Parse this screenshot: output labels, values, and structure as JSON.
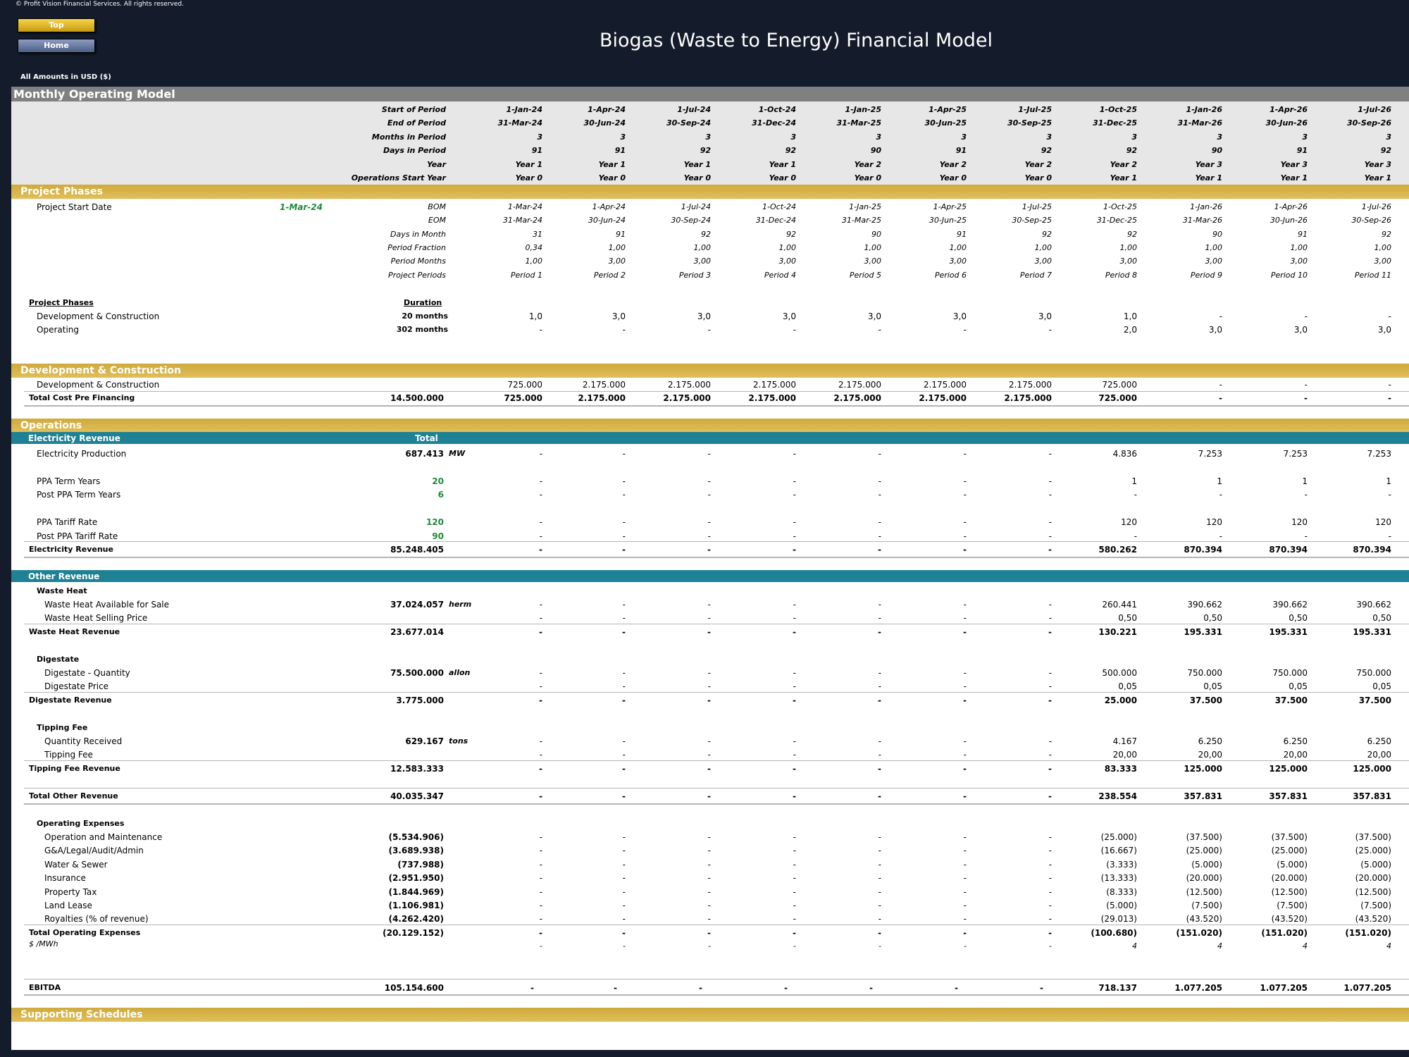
{
  "header": {
    "copyright": "© Profit Vision Financial Services. All rights reserved.",
    "top_button": "Top",
    "home_button": "Home",
    "title": "Biogas (Waste to Energy) Financial Model",
    "amounts": "All Amounts in  USD ($)"
  },
  "sheet_title": "Monthly Operating Model",
  "period_header": [
    {
      "label": "Start of Period",
      "values": [
        "1-Jan-24",
        "1-Apr-24",
        "1-Jul-24",
        "1-Oct-24",
        "1-Jan-25",
        "1-Apr-25",
        "1-Jul-25",
        "1-Oct-25",
        "1-Jan-26",
        "1-Apr-26",
        "1-Jul-26"
      ]
    },
    {
      "label": "End of Period",
      "values": [
        "31-Mar-24",
        "30-Jun-24",
        "30-Sep-24",
        "31-Dec-24",
        "31-Mar-25",
        "30-Jun-25",
        "30-Sep-25",
        "31-Dec-25",
        "31-Mar-26",
        "30-Jun-26",
        "30-Sep-26"
      ]
    },
    {
      "label": "Months in Period",
      "values": [
        "3",
        "3",
        "3",
        "3",
        "3",
        "3",
        "3",
        "3",
        "3",
        "3",
        "3"
      ]
    },
    {
      "label": "Days in Period",
      "values": [
        "91",
        "91",
        "92",
        "92",
        "90",
        "91",
        "92",
        "92",
        "90",
        "91",
        "92"
      ]
    },
    {
      "label": "Year",
      "values": [
        "Year 1",
        "Year 1",
        "Year 1",
        "Year 1",
        "Year 2",
        "Year 2",
        "Year 2",
        "Year 2",
        "Year 3",
        "Year 3",
        "Year 3"
      ]
    },
    {
      "label": "Operations Start Year",
      "values": [
        "Year 0",
        "Year 0",
        "Year 0",
        "Year 0",
        "Year 0",
        "Year 0",
        "Year 0",
        "Year 1",
        "Year 1",
        "Year 1",
        "Year 1"
      ]
    }
  ],
  "project_phases": {
    "section_label": "Project Phases",
    "start_date_label": "Project Start Date",
    "start_date_value": "1-Mar-24",
    "rows": [
      {
        "label": "BOM",
        "values": [
          "1-Mar-24",
          "1-Apr-24",
          "1-Jul-24",
          "1-Oct-24",
          "1-Jan-25",
          "1-Apr-25",
          "1-Jul-25",
          "1-Oct-25",
          "1-Jan-26",
          "1-Apr-26",
          "1-Jul-26"
        ]
      },
      {
        "label": "EOM",
        "values": [
          "31-Mar-24",
          "30-Jun-24",
          "30-Sep-24",
          "31-Dec-24",
          "31-Mar-25",
          "30-Jun-25",
          "30-Sep-25",
          "31-Dec-25",
          "31-Mar-26",
          "30-Jun-26",
          "30-Sep-26"
        ]
      },
      {
        "label": "Days in Month",
        "values": [
          "31",
          "91",
          "92",
          "92",
          "90",
          "91",
          "92",
          "92",
          "90",
          "91",
          "92"
        ]
      },
      {
        "label": "Period Fraction",
        "values": [
          "0,34",
          "1,00",
          "1,00",
          "1,00",
          "1,00",
          "1,00",
          "1,00",
          "1,00",
          "1,00",
          "1,00",
          "1,00"
        ]
      },
      {
        "label": "Period Months",
        "values": [
          "1,00",
          "3,00",
          "3,00",
          "3,00",
          "3,00",
          "3,00",
          "3,00",
          "3,00",
          "3,00",
          "3,00",
          "3,00"
        ]
      },
      {
        "label": "Project Periods",
        "values": [
          "Period 1",
          "Period 2",
          "Period 3",
          "Period 4",
          "Period 5",
          "Period 6",
          "Period 7",
          "Period 8",
          "Period 9",
          "Period 10",
          "Period 11"
        ]
      }
    ],
    "phases_heading": "Project Phases",
    "duration_heading": "Duration",
    "phases": [
      {
        "label": "Development & Construction",
        "duration": "20 months",
        "values": [
          "1,0",
          "3,0",
          "3,0",
          "3,0",
          "3,0",
          "3,0",
          "3,0",
          "1,0",
          "-",
          "-",
          "-"
        ]
      },
      {
        "label": "Operating",
        "duration": "302 months",
        "values": [
          "-",
          "-",
          "-",
          "-",
          "-",
          "-",
          "-",
          "2,0",
          "3,0",
          "3,0",
          "3,0"
        ]
      }
    ]
  },
  "dev_construction": {
    "section_label": "Development & Construction",
    "row": {
      "label": "Development & Construction",
      "values": [
        "725.000",
        "2.175.000",
        "2.175.000",
        "2.175.000",
        "2.175.000",
        "2.175.000",
        "2.175.000",
        "725.000",
        "-",
        "-",
        "-"
      ]
    },
    "total": {
      "label": "Total Cost Pre Financing",
      "total": "14.500.000",
      "values": [
        "725.000",
        "2.175.000",
        "2.175.000",
        "2.175.000",
        "2.175.000",
        "2.175.000",
        "2.175.000",
        "725.000",
        "-",
        "-",
        "-"
      ]
    }
  },
  "operations": {
    "section_label": "Operations",
    "electricity_label": "Electricity Revenue",
    "total_heading": "Total",
    "electricity_production": {
      "label": "Electricity Production",
      "total": "687.413",
      "unit": "MW",
      "values": [
        "-",
        "-",
        "-",
        "-",
        "-",
        "-",
        "-",
        "4.836",
        "7.253",
        "7.253",
        "7.253"
      ]
    },
    "ppa_term": {
      "label": "PPA Term Years",
      "total": "20",
      "values": [
        "-",
        "-",
        "-",
        "-",
        "-",
        "-",
        "-",
        "1",
        "1",
        "1",
        "1"
      ]
    },
    "post_ppa_term": {
      "label": "Post PPA Term Years",
      "total": "6",
      "values": [
        "-",
        "-",
        "-",
        "-",
        "-",
        "-",
        "-",
        "-",
        "-",
        "-",
        "-"
      ]
    },
    "ppa_tariff": {
      "label": "PPA Tariff Rate",
      "total": "120",
      "values": [
        "-",
        "-",
        "-",
        "-",
        "-",
        "-",
        "-",
        "120",
        "120",
        "120",
        "120"
      ]
    },
    "post_ppa_tariff": {
      "label": "Post PPA Tariff Rate",
      "total": "90",
      "values": [
        "-",
        "-",
        "-",
        "-",
        "-",
        "-",
        "-",
        "-",
        "-",
        "-",
        "-"
      ]
    },
    "electricity_revenue": {
      "label": "Electricity Revenue",
      "total": "85.248.405",
      "values": [
        "-",
        "-",
        "-",
        "-",
        "-",
        "-",
        "-",
        "580.262",
        "870.394",
        "870.394",
        "870.394"
      ]
    },
    "other_revenue_label": "Other Revenue",
    "waste_heat_heading": "Waste Heat",
    "waste_heat_available": {
      "label": "Waste Heat Available for Sale",
      "total": "37.024.057",
      "unit": "herm",
      "values": [
        "-",
        "-",
        "-",
        "-",
        "-",
        "-",
        "-",
        "260.441",
        "390.662",
        "390.662",
        "390.662"
      ]
    },
    "waste_heat_price": {
      "label": "Waste Heat Selling Price",
      "values": [
        "-",
        "-",
        "-",
        "-",
        "-",
        "-",
        "-",
        "0,50",
        "0,50",
        "0,50",
        "0,50"
      ]
    },
    "waste_heat_revenue": {
      "label": "Waste Heat Revenue",
      "total": "23.677.014",
      "values": [
        "-",
        "-",
        "-",
        "-",
        "-",
        "-",
        "-",
        "130.221",
        "195.331",
        "195.331",
        "195.331"
      ]
    },
    "digestate_heading": "Digestate",
    "digestate_quantity": {
      "label": "Digestate - Quantity",
      "total": "75.500.000",
      "unit": "allon",
      "values": [
        "-",
        "-",
        "-",
        "-",
        "-",
        "-",
        "-",
        "500.000",
        "750.000",
        "750.000",
        "750.000"
      ]
    },
    "digestate_price": {
      "label": "Digestate Price",
      "values": [
        "-",
        "-",
        "-",
        "-",
        "-",
        "-",
        "-",
        "0,05",
        "0,05",
        "0,05",
        "0,05"
      ]
    },
    "digestate_revenue": {
      "label": "Digestate Revenue",
      "total": "3.775.000",
      "values": [
        "-",
        "-",
        "-",
        "-",
        "-",
        "-",
        "-",
        "25.000",
        "37.500",
        "37.500",
        "37.500"
      ]
    },
    "tipping_heading": "Tipping Fee",
    "quantity_received": {
      "label": "Quantity Received",
      "total": "629.167",
      "unit": "tons",
      "values": [
        "-",
        "-",
        "-",
        "-",
        "-",
        "-",
        "-",
        "4.167",
        "6.250",
        "6.250",
        "6.250"
      ]
    },
    "tipping_fee": {
      "label": "Tipping Fee",
      "values": [
        "-",
        "-",
        "-",
        "-",
        "-",
        "-",
        "-",
        "20,00",
        "20,00",
        "20,00",
        "20,00"
      ]
    },
    "tipping_revenue": {
      "label": "Tipping Fee Revenue",
      "total": "12.583.333",
      "values": [
        "-",
        "-",
        "-",
        "-",
        "-",
        "-",
        "-",
        "83.333",
        "125.000",
        "125.000",
        "125.000"
      ]
    },
    "total_other_revenue": {
      "label": "Total Other Revenue",
      "total": "40.035.347",
      "values": [
        "-",
        "-",
        "-",
        "-",
        "-",
        "-",
        "-",
        "238.554",
        "357.831",
        "357.831",
        "357.831"
      ]
    },
    "opex_heading": "Operating Expenses",
    "opex": [
      {
        "label": "Operation and Maintenance",
        "total": "(5.534.906)",
        "values": [
          "-",
          "-",
          "-",
          "-",
          "-",
          "-",
          "-",
          "(25.000)",
          "(37.500)",
          "(37.500)",
          "(37.500)"
        ]
      },
      {
        "label": "G&A/Legal/Audit/Admin",
        "total": "(3.689.938)",
        "values": [
          "-",
          "-",
          "-",
          "-",
          "-",
          "-",
          "-",
          "(16.667)",
          "(25.000)",
          "(25.000)",
          "(25.000)"
        ]
      },
      {
        "label": "Water & Sewer",
        "total": "(737.988)",
        "values": [
          "-",
          "-",
          "-",
          "-",
          "-",
          "-",
          "-",
          "(3.333)",
          "(5.000)",
          "(5.000)",
          "(5.000)"
        ]
      },
      {
        "label": "Insurance",
        "total": "(2.951.950)",
        "values": [
          "-",
          "-",
          "-",
          "-",
          "-",
          "-",
          "-",
          "(13.333)",
          "(20.000)",
          "(20.000)",
          "(20.000)"
        ]
      },
      {
        "label": "Property Tax",
        "total": "(1.844.969)",
        "values": [
          "-",
          "-",
          "-",
          "-",
          "-",
          "-",
          "-",
          "(8.333)",
          "(12.500)",
          "(12.500)",
          "(12.500)"
        ]
      },
      {
        "label": "Land Lease",
        "total": "(1.106.981)",
        "values": [
          "-",
          "-",
          "-",
          "-",
          "-",
          "-",
          "-",
          "(5.000)",
          "(7.500)",
          "(7.500)",
          "(7.500)"
        ]
      },
      {
        "label": "Royalties (% of revenue)",
        "total": "(4.262.420)",
        "values": [
          "-",
          "-",
          "-",
          "-",
          "-",
          "-",
          "-",
          "(29.013)",
          "(43.520)",
          "(43.520)",
          "(43.520)"
        ]
      }
    ],
    "total_opex": {
      "label": "Total Operating Expenses",
      "total": "(20.129.152)",
      "values": [
        "-",
        "-",
        "-",
        "-",
        "-",
        "-",
        "-",
        "(100.680)",
        "(151.020)",
        "(151.020)",
        "(151.020)"
      ]
    },
    "per_mwh": {
      "label": "$ /MWh",
      "values": [
        "-",
        "-",
        "-",
        "-",
        "-",
        "-",
        "-",
        "4",
        "4",
        "4",
        "4"
      ]
    },
    "ebitda": {
      "label": "EBITDA",
      "total": "105.154.600",
      "values": [
        "-",
        "-",
        "-",
        "-",
        "-",
        "-",
        "-",
        "718.137",
        "1.077.205",
        "1.077.205",
        "1.077.205"
      ]
    }
  },
  "supporting_label": "Supporting Schedules"
}
